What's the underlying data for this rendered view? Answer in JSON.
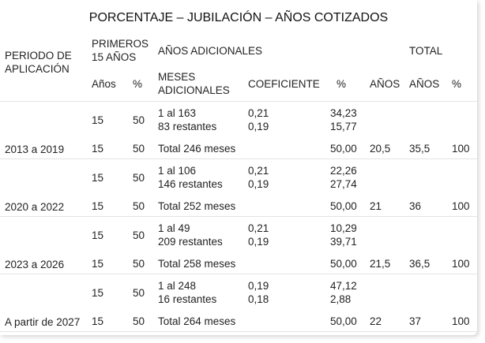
{
  "title": "PORCENTAJE – JUBILACIÓN – AÑOS COTIZADOS",
  "headers": {
    "periodo": "PERIODO DE APLICACIÓN",
    "primeros": "PRIMEROS 15 AÑOS",
    "adicionales": "AÑOS ADICIONALES",
    "total": "TOTAL",
    "anos": "Años",
    "pct": "%",
    "meses": "MESES ADICIONALES",
    "coef": "COEFICIENTE",
    "pct2": "%",
    "anos2": "AÑOS",
    "anos3": "AÑOS",
    "pct3": "%"
  },
  "periods": [
    {
      "label": "2013 a 2019",
      "detail": {
        "anos": "15",
        "pct": "50",
        "meses": [
          "1 al 163",
          "83 restantes"
        ],
        "coef": [
          "0,21",
          "0,19"
        ],
        "pcts": [
          "34,23",
          "15,77"
        ]
      },
      "total": {
        "anos": "15",
        "pct": "50",
        "meses": "Total 246 meses",
        "pct_ad": "50,00",
        "anos_ad": "20,5",
        "anos_total": "35,5",
        "pct_total": "100"
      }
    },
    {
      "label": "2020 a 2022",
      "detail": {
        "anos": "15",
        "pct": "50",
        "meses": [
          "1 al 106",
          "146 restantes"
        ],
        "coef": [
          "0,21",
          "0,19"
        ],
        "pcts": [
          "22,26",
          "27,74"
        ]
      },
      "total": {
        "anos": "15",
        "pct": "50",
        "meses": "Total 252 meses",
        "pct_ad": "50,00",
        "anos_ad": "21",
        "anos_total": "36",
        "pct_total": "100"
      }
    },
    {
      "label": "2023 a 2026",
      "detail": {
        "anos": "15",
        "pct": "50",
        "meses": [
          "1 al 49",
          "209 restantes"
        ],
        "coef": [
          "0,21",
          "0,19"
        ],
        "pcts": [
          "10,29",
          "39,71"
        ]
      },
      "total": {
        "anos": "15",
        "pct": "50",
        "meses": "Total 258 meses",
        "pct_ad": "50,00",
        "anos_ad": "21,5",
        "anos_total": "36,5",
        "pct_total": "100"
      }
    },
    {
      "label": "A partir de 2027",
      "detail": {
        "anos": "15",
        "pct": "50",
        "meses": [
          "1 al 248",
          "16 restantes"
        ],
        "coef": [
          "0,19",
          "0,18"
        ],
        "pcts": [
          "47,12",
          "2,88"
        ]
      },
      "total": {
        "anos": "15",
        "pct": "50",
        "meses": "Total 264 meses",
        "pct_ad": "50,00",
        "anos_ad": "22",
        "anos_total": "37",
        "pct_total": "100"
      }
    }
  ]
}
